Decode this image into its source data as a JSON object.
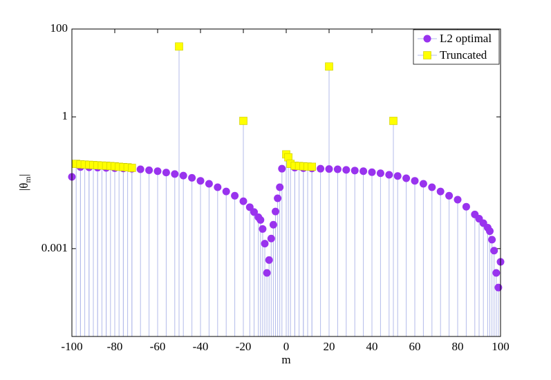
{
  "chart_data": {
    "type": "stem",
    "xlabel": "m",
    "ylabel": [
      "|θ",
      "m",
      "|"
    ],
    "xlim": [
      -100,
      100
    ],
    "xticks": [
      -100,
      -80,
      -60,
      -40,
      -20,
      0,
      20,
      40,
      60,
      80,
      100
    ],
    "ylim": [
      1e-05,
      100
    ],
    "yticks": [
      100,
      1,
      0.001
    ],
    "log_y": true,
    "legend": "upper right",
    "stem_color": "#b3bbea",
    "series": [
      {
        "name": "L2 optimal",
        "color": "#9933ee",
        "marker": "circle",
        "x": [
          -100,
          -96,
          -92,
          -88,
          -84,
          -80,
          -76,
          -72,
          -68,
          -64,
          -60,
          -56,
          -52,
          -48,
          -44,
          -40,
          -36,
          -32,
          -28,
          -24,
          -20,
          -17,
          -15,
          -13,
          -12,
          -11,
          -10,
          -9,
          -8,
          -7,
          -6,
          -5,
          -4,
          -3,
          -2,
          4,
          8,
          12,
          16,
          20,
          24,
          28,
          32,
          36,
          40,
          44,
          48,
          52,
          56,
          60,
          64,
          68,
          72,
          76,
          80,
          84,
          88,
          90,
          92,
          94,
          95,
          96,
          97,
          98,
          99,
          100
        ],
        "values": [
          0.043,
          0.072,
          0.071,
          0.07,
          0.069,
          0.068,
          0.067,
          0.066,
          0.064,
          0.061,
          0.058,
          0.054,
          0.05,
          0.046,
          0.041,
          0.035,
          0.03,
          0.025,
          0.02,
          0.016,
          0.012,
          0.0088,
          0.0068,
          0.0052,
          0.0045,
          0.0028,
          0.0013,
          0.00028,
          0.00055,
          0.0017,
          0.0035,
          0.007,
          0.014,
          0.025,
          0.066,
          0.07,
          0.068,
          0.067,
          0.066,
          0.065,
          0.064,
          0.062,
          0.06,
          0.058,
          0.055,
          0.052,
          0.048,
          0.045,
          0.04,
          0.035,
          0.03,
          0.025,
          0.02,
          0.016,
          0.013,
          0.009,
          0.006,
          0.0048,
          0.0038,
          0.003,
          0.0025,
          0.0016,
          0.0009,
          0.00028,
          0.00013,
          0.0005
        ]
      },
      {
        "name": "Truncated",
        "color": "#ffff00",
        "marker": "square",
        "x": [
          -98,
          -96,
          -94,
          -92,
          -90,
          -88,
          -86,
          -84,
          -82,
          -80,
          -78,
          -76,
          -74,
          -72,
          -50,
          -20,
          0,
          1,
          2,
          4,
          6,
          8,
          10,
          12,
          20,
          50
        ],
        "values": [
          0.085,
          0.083,
          0.082,
          0.081,
          0.08,
          0.079,
          0.078,
          0.077,
          0.076,
          0.075,
          0.073,
          0.072,
          0.071,
          0.069,
          40,
          0.81,
          0.14,
          0.12,
          0.085,
          0.077,
          0.076,
          0.075,
          0.074,
          0.073,
          14,
          0.81
        ]
      }
    ]
  }
}
